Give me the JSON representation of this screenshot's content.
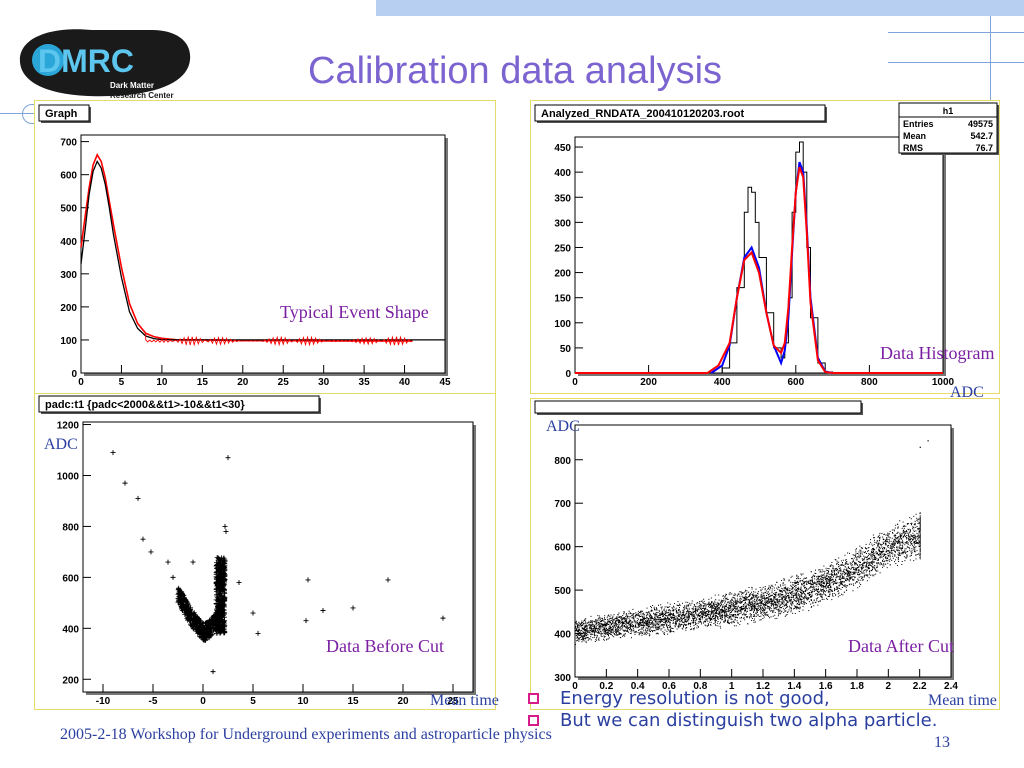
{
  "slide": {
    "title": "Calibration data analysis",
    "logo": {
      "text": "DMRC",
      "sub1": "Dark Matter",
      "sub2": "Research Center"
    },
    "footer": "2005-2-18  Workshop for Underground experiments and astroparticle physics",
    "page_number": "13",
    "bullets": [
      "Energy resolution is not good,",
      "But we can distinguish two alpha particle."
    ],
    "colors": {
      "title": "#7b63d0",
      "caption": "#7b1fa2",
      "note": "#2a3fa0",
      "bullet": "#d81b8a",
      "panel_border": "#e6dc6a"
    }
  },
  "chart_data": [
    {
      "type": "line",
      "title": "Graph",
      "caption": "Typical Event Shape",
      "xlim": [
        0,
        45
      ],
      "ylim": [
        0,
        720
      ],
      "xticks": [
        "0",
        "5",
        "10",
        "15",
        "20",
        "25",
        "30",
        "35",
        "40",
        "45"
      ],
      "yticks": [
        "0",
        "100",
        "200",
        "300",
        "400",
        "500",
        "600",
        "700"
      ],
      "series": [
        {
          "color": "#ff0000",
          "x": [
            0,
            0.5,
            1,
            1.5,
            2,
            2.5,
            3,
            3.5,
            4,
            5,
            6,
            7,
            8,
            9,
            10,
            12,
            15,
            20,
            25,
            30,
            35,
            40,
            41
          ],
          "y": [
            380,
            470,
            560,
            630,
            660,
            640,
            590,
            520,
            450,
            320,
            210,
            150,
            120,
            110,
            105,
            100,
            100,
            98,
            98,
            97,
            97,
            97,
            97
          ]
        },
        {
          "color": "#000000",
          "x": [
            0,
            0.5,
            1,
            1.5,
            2,
            2.5,
            3,
            3.5,
            4,
            5,
            6,
            7,
            8,
            9,
            10,
            12,
            15,
            20,
            25,
            30,
            35,
            40,
            45
          ],
          "y": [
            330,
            430,
            540,
            610,
            640,
            620,
            570,
            500,
            420,
            290,
            185,
            135,
            112,
            104,
            101,
            100,
            100,
            100,
            100,
            100,
            100,
            100,
            100
          ]
        }
      ]
    },
    {
      "type": "line",
      "title": "Analyzed_RNDATA_200410120203.root",
      "caption": "Data Histogram",
      "xunit": "ADC",
      "xlim": [
        0,
        1000
      ],
      "ylim": [
        0,
        470
      ],
      "xticks": [
        "0",
        "200",
        "400",
        "600",
        "800",
        "1000"
      ],
      "yticks": [
        "0",
        "50",
        "100",
        "150",
        "200",
        "250",
        "300",
        "350",
        "400",
        "450"
      ],
      "stats": {
        "name": "h1",
        "rows": [
          [
            "Entries",
            "49575"
          ],
          [
            "Mean",
            "542.7"
          ],
          [
            "RMS",
            "76.7"
          ]
        ]
      },
      "series": [
        {
          "color": "#000000",
          "x": [
            370,
            400,
            420,
            440,
            460,
            470,
            480,
            490,
            500,
            520,
            540,
            560,
            570,
            580,
            590,
            600,
            610,
            620,
            630,
            640,
            660,
            680,
            700
          ],
          "y": [
            0,
            10,
            60,
            170,
            320,
            370,
            360,
            300,
            230,
            120,
            50,
            30,
            60,
            150,
            320,
            440,
            460,
            400,
            250,
            110,
            20,
            2,
            0
          ]
        },
        {
          "color": "#0000ff",
          "x": [
            370,
            400,
            420,
            440,
            460,
            480,
            500,
            520,
            540,
            560,
            570,
            580,
            590,
            600,
            610,
            620,
            630,
            640,
            660,
            680,
            700
          ],
          "y": [
            0,
            15,
            55,
            150,
            230,
            250,
            210,
            120,
            55,
            20,
            45,
            110,
            240,
            360,
            420,
            400,
            290,
            150,
            30,
            3,
            0
          ]
        },
        {
          "color": "#ff0000",
          "x": [
            0,
            360,
            390,
            420,
            440,
            460,
            480,
            500,
            520,
            540,
            560,
            570,
            580,
            590,
            600,
            610,
            620,
            630,
            640,
            660,
            680,
            700,
            1000
          ],
          "y": [
            0,
            0,
            15,
            60,
            150,
            225,
            240,
            200,
            120,
            55,
            40,
            60,
            130,
            250,
            360,
            410,
            390,
            280,
            140,
            25,
            2,
            0,
            0
          ]
        }
      ]
    },
    {
      "type": "scatter",
      "title": "padc:t1 {padc<2000&&t1>-10&&t1<30}",
      "caption": "Data Before Cut",
      "xlabel": "Mean time",
      "ylabel": "ADC",
      "xlim": [
        -12,
        27
      ],
      "ylim": [
        150,
        1210
      ],
      "xticks": [
        "-10",
        "-5",
        "0",
        "5",
        "10",
        "15",
        "20",
        "25"
      ],
      "yticks": [
        "200",
        "400",
        "600",
        "800",
        "1000",
        "1200"
      ],
      "points": [
        [
          -9,
          1090
        ],
        [
          -7.8,
          970
        ],
        [
          -6.5,
          910
        ],
        [
          -6,
          750
        ],
        [
          -5.2,
          700
        ],
        [
          -3.5,
          660
        ],
        [
          -1,
          660
        ],
        [
          -3,
          600
        ],
        [
          2.5,
          1070
        ],
        [
          2.2,
          800
        ],
        [
          2.3,
          780
        ],
        [
          3.6,
          580
        ],
        [
          5,
          460
        ],
        [
          5.5,
          380
        ],
        [
          10.3,
          430
        ],
        [
          10.5,
          590
        ],
        [
          12,
          470
        ],
        [
          15,
          480
        ],
        [
          18.5,
          590
        ],
        [
          24,
          440
        ],
        [
          1,
          230
        ]
      ]
    },
    {
      "type": "scatter",
      "title": "",
      "caption": "Data After Cut",
      "xlabel": "Mean time",
      "ylabel": "ADC",
      "xlim": [
        0,
        2.4
      ],
      "ylim": [
        300,
        880
      ],
      "xticks": [
        "0",
        "0.2",
        "0.4",
        "0.6",
        "0.8",
        "1",
        "1.2",
        "1.4",
        "1.6",
        "1.8",
        "2",
        "2.2",
        "2.4"
      ],
      "yticks": [
        "300",
        "400",
        "500",
        "600",
        "700",
        "800"
      ],
      "trend": {
        "x": [
          0,
          0.4,
          0.8,
          1.2,
          1.5,
          1.8,
          2.0,
          2.2
        ],
        "y": [
          405,
          425,
          445,
          470,
          500,
          550,
          600,
          625
        ]
      },
      "outliers": [
        [
          2.2,
          830
        ],
        [
          2.25,
          845
        ],
        [
          0.02,
          390
        ]
      ]
    }
  ]
}
